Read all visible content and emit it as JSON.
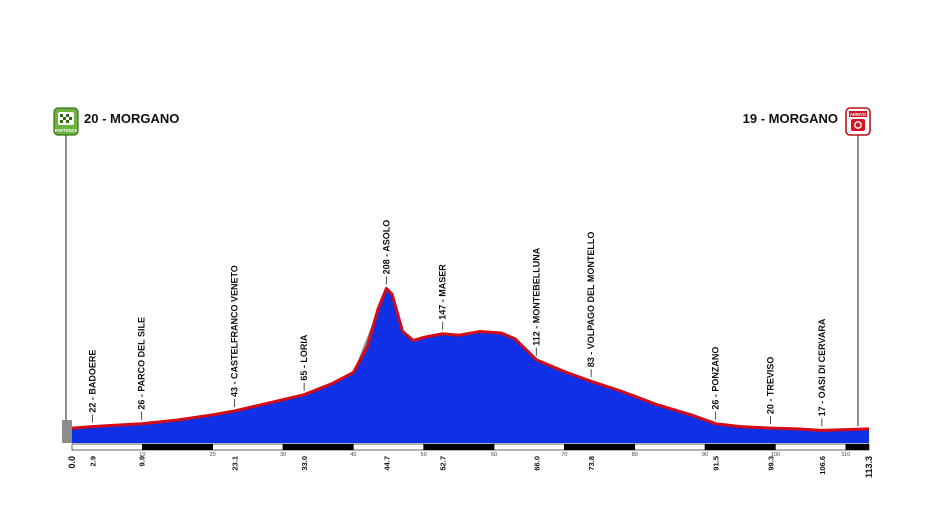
{
  "chart_data": {
    "type": "area",
    "start": {
      "label": "20 - MORGANO",
      "badge": "PARTENZA"
    },
    "finish": {
      "label": "19 - MORGANO",
      "badge": "ARRIVO"
    },
    "ylabel": "",
    "xlabel": "",
    "xlim": [
      0,
      113.3
    ],
    "ylim": [
      0,
      300
    ],
    "x_ticks": [
      "0.0",
      "2.9",
      "9.9",
      "23.1",
      "33.0",
      "44.7",
      "52.7",
      "66.0",
      "73.8",
      "91.5",
      "99.3",
      "106.6",
      "113.3"
    ],
    "scale_ticks": [
      "10",
      "20",
      "30",
      "40",
      "50",
      "60",
      "70",
      "80",
      "90",
      "100",
      "110"
    ],
    "waypoints": [
      {
        "km": 2.9,
        "label": "22 - BADOERE"
      },
      {
        "km": 9.9,
        "label": "26 - PARCO DEL SILE"
      },
      {
        "km": 23.1,
        "label": "43 - CASTELFRANCO VENETO"
      },
      {
        "km": 33.0,
        "label": "65 - LORIA"
      },
      {
        "km": 44.7,
        "label": "208 - ASOLO"
      },
      {
        "km": 52.7,
        "label": "147 - MASER"
      },
      {
        "km": 66.0,
        "label": "112 - MONTEBELLUNA"
      },
      {
        "km": 73.8,
        "label": "83 - VOLPAGO DEL MONTELLO"
      },
      {
        "km": 91.5,
        "label": "26 - PONZANO"
      },
      {
        "km": 99.3,
        "label": "20 - TREVISO"
      },
      {
        "km": 106.6,
        "label": "17 - OASI DI CERVARA"
      }
    ],
    "series": [
      {
        "x": [
          0,
          2.9,
          6,
          9.9,
          15,
          20,
          23.1,
          28,
          33.0,
          37,
          40,
          42,
          43.5,
          44.7,
          45.5,
          47,
          48.5,
          50,
          52.7,
          55,
          58,
          61,
          63,
          66.0,
          70,
          73.8,
          78,
          83,
          88,
          91.5,
          95,
          99.3,
          103,
          106.6,
          110,
          113.3
        ],
        "y": [
          20,
          22,
          24,
          26,
          31,
          38,
          43,
          54,
          65,
          80,
          95,
          130,
          180,
          208,
          200,
          150,
          138,
          142,
          147,
          145,
          150,
          148,
          140,
          112,
          96,
          83,
          70,
          52,
          38,
          26,
          22,
          20,
          19,
          17,
          18,
          19
        ]
      }
    ],
    "colors": {
      "fill": "#1030e6",
      "line": "#d40a14",
      "climb": "#8c8c8c"
    }
  }
}
